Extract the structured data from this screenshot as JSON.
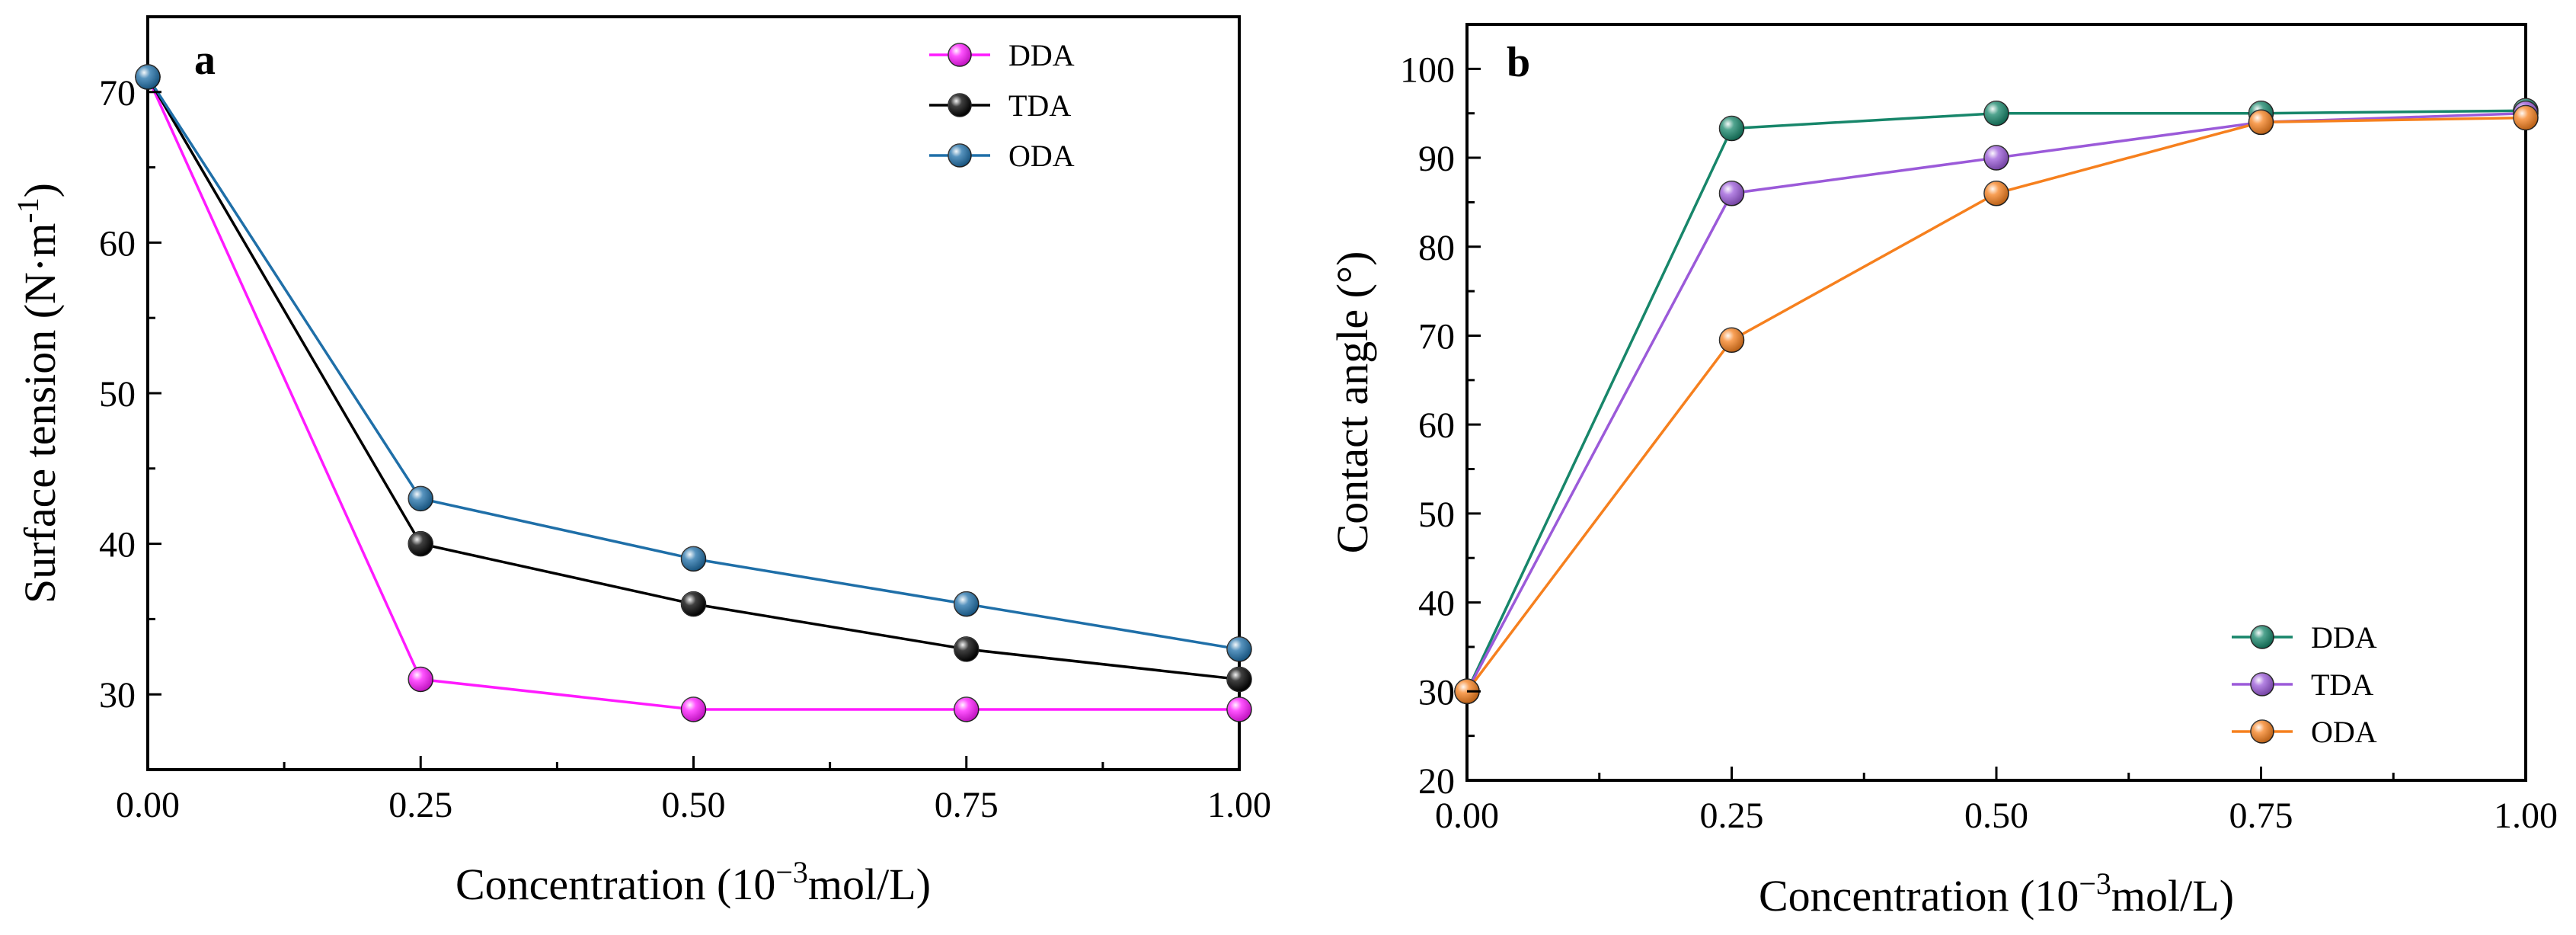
{
  "chart_data": [
    {
      "panel": "a",
      "type": "line",
      "xlabel": "Concentration (10",
      "xlabel_sup": "−3",
      "xlabel_tail": "mol/L)",
      "ylabel": "Surface tension  (N·m",
      "ylabel_sup": "-1",
      "ylabel_tail": ")",
      "xlim": [
        0,
        1
      ],
      "ylim": [
        25,
        75
      ],
      "xticks": [
        "0.00",
        "0.25",
        "0.50",
        "0.75",
        "1.00"
      ],
      "yticks": [
        "30",
        "40",
        "50",
        "60",
        "70"
      ],
      "legend_position": "top-right",
      "x": [
        0,
        0.25,
        0.5,
        0.75,
        1.0
      ],
      "series": [
        {
          "name": "DDA",
          "color": "#ff1aff",
          "values": [
            71,
            31,
            29,
            29,
            29
          ]
        },
        {
          "name": "TDA",
          "color": "#000000",
          "values": [
            71,
            40,
            36,
            33,
            31
          ]
        },
        {
          "name": "ODA",
          "color": "#1f6fa8",
          "values": [
            71,
            43,
            39,
            36,
            33
          ]
        }
      ]
    },
    {
      "panel": "b",
      "type": "line",
      "xlabel": "Concentration (10",
      "xlabel_sup": "−3",
      "xlabel_tail": "mol/L)",
      "ylabel": "Contact angle (°)",
      "xlim": [
        0,
        1
      ],
      "ylim": [
        20,
        105
      ],
      "xticks": [
        "0.00",
        "0.25",
        "0.50",
        "0.75",
        "1.00"
      ],
      "yticks": [
        "20",
        "30",
        "40",
        "50",
        "60",
        "70",
        "80",
        "90",
        "100"
      ],
      "legend_position": "bottom-right",
      "x": [
        0,
        0.25,
        0.5,
        0.75,
        1.0
      ],
      "series": [
        {
          "name": "DDA",
          "color": "#17866a",
          "values": [
            30,
            93.3,
            95,
            95,
            95.3
          ]
        },
        {
          "name": "TDA",
          "color": "#9b5ad9",
          "values": [
            30,
            86,
            90,
            94,
            95
          ]
        },
        {
          "name": "ODA",
          "color": "#f6801e",
          "values": [
            30,
            69.5,
            86,
            94,
            94.5
          ]
        }
      ]
    }
  ]
}
